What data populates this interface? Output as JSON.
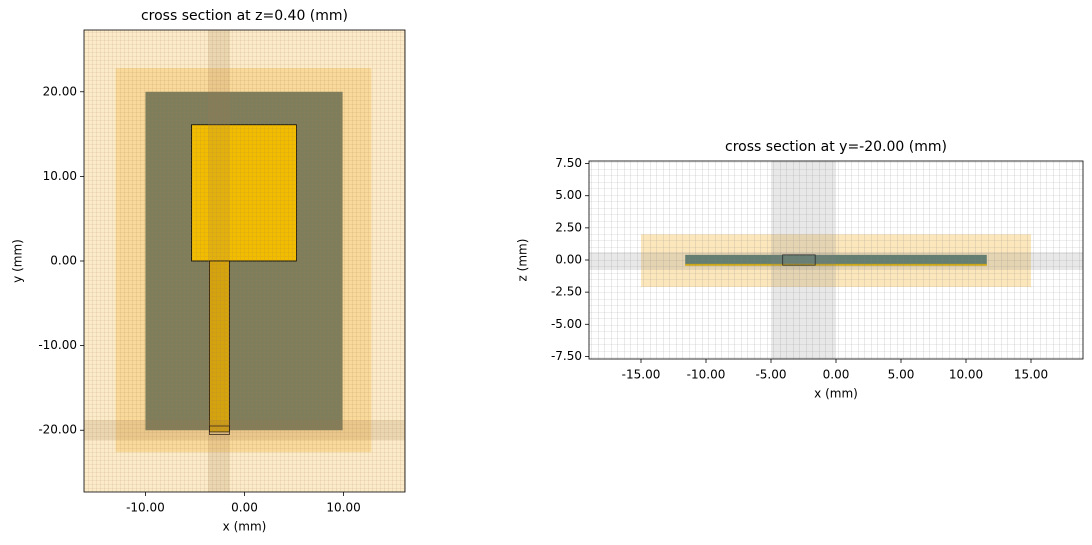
{
  "chart_data": [
    {
      "type": "cross-section",
      "title": "cross section at z=0.40 (mm)",
      "xlabel": "x (mm)",
      "ylabel": "y (mm)",
      "xlim": [
        -16.2,
        16.2
      ],
      "ylim": [
        -27.3,
        27.3
      ],
      "xticks": [
        {
          "value": -10,
          "label": "-10.00"
        },
        {
          "value": 0,
          "label": "0.00"
        },
        {
          "value": 10,
          "label": "10.00"
        }
      ],
      "yticks": [
        {
          "value": -20,
          "label": "-20.00"
        },
        {
          "value": -10,
          "label": "-10.00"
        },
        {
          "value": 0,
          "label": "0.00"
        },
        {
          "value": 10,
          "label": "10.00"
        },
        {
          "value": 20,
          "label": "20.00"
        }
      ],
      "background": "#fcebc9",
      "mesh_color": "#a07850",
      "shapes": [
        {
          "x": [
            -13,
            12.8
          ],
          "y": [
            -22.6,
            22.8
          ],
          "color": "#f5b942",
          "opacity": 0.35
        },
        {
          "x": [
            -10,
            9.9
          ],
          "y": [
            -20,
            20
          ],
          "color": "#7e7e5c",
          "opacity": 1
        },
        {
          "x": [
            -5.35,
            5.25
          ],
          "y": [
            0,
            16.1
          ],
          "color": "#f2bd00",
          "opacity": 1,
          "edge": "#000000"
        },
        {
          "x": [
            -3.54,
            -1.52
          ],
          "y": [
            -20.2,
            0
          ],
          "color": "#e0ac00",
          "opacity": 1,
          "edge": "#000000"
        },
        {
          "x": [
            -3.54,
            -1.52
          ],
          "y": [
            -20.5,
            -19.5
          ],
          "color": "none",
          "opacity": 1,
          "edge": "#000000"
        }
      ]
    },
    {
      "type": "cross-section",
      "title": "cross section at y=-20.00 (mm)",
      "xlabel": "x (mm)",
      "ylabel": "z (mm)",
      "xlim": [
        -19,
        19
      ],
      "ylim": [
        -7.7,
        7.7
      ],
      "xticks": [
        {
          "value": -15,
          "label": "-15.00"
        },
        {
          "value": -10,
          "label": "-10.00"
        },
        {
          "value": -5,
          "label": "-5.00"
        },
        {
          "value": 0,
          "label": "0.00"
        },
        {
          "value": 5,
          "label": "5.00"
        },
        {
          "value": 10,
          "label": "10.00"
        },
        {
          "value": 15,
          "label": "15.00"
        }
      ],
      "yticks": [
        {
          "value": -7.5,
          "label": "-7.50"
        },
        {
          "value": -5,
          "label": "-5.00"
        },
        {
          "value": -2.5,
          "label": "-2.50"
        },
        {
          "value": 0,
          "label": "0.00"
        },
        {
          "value": 2.5,
          "label": "2.50"
        },
        {
          "value": 5,
          "label": "5.00"
        },
        {
          "value": 7.5,
          "label": "7.50"
        }
      ],
      "background": "#ffffff",
      "mesh_color": "#808080",
      "shapes": [
        {
          "x": [
            -15,
            15
          ],
          "y": [
            -2.1,
            2
          ],
          "color": "#f5b942",
          "opacity": 0.35
        },
        {
          "x": [
            -11.6,
            11.6
          ],
          "y": [
            -0.4,
            0.4
          ],
          "color": "#5f7f6f",
          "opacity": 1
        },
        {
          "x": [
            -11.6,
            11.6
          ],
          "y": [
            -0.45,
            -0.3
          ],
          "color": "#e0b000",
          "opacity": 1
        },
        {
          "x": [
            -4.1,
            -1.6
          ],
          "y": [
            -0.4,
            0.4
          ],
          "color": "none",
          "opacity": 1,
          "edge": "#000000"
        }
      ]
    }
  ]
}
